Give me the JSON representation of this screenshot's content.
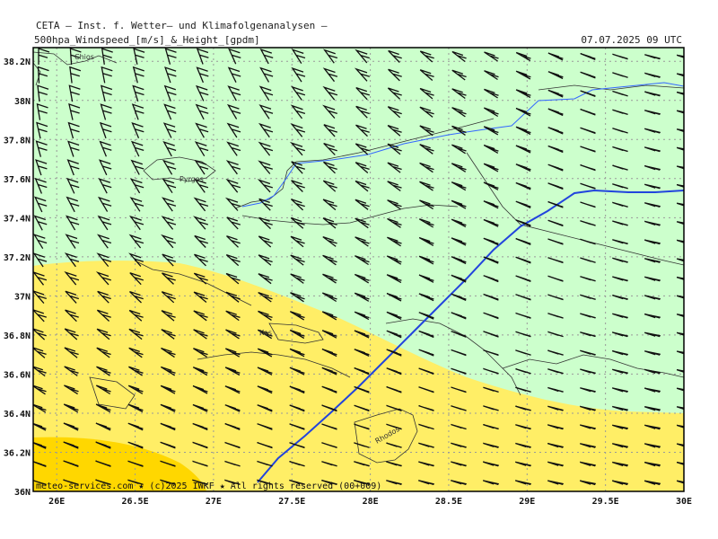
{
  "header": {
    "org": "CETA — Inst. f. Wetter— und Klimafolgenanalysen —",
    "parameter": "500hpa_Windspeed_[m/s]_&_Height_[gpdm]",
    "datetime": "07.07.2025 09 UTC"
  },
  "footer": {
    "credit": "meteo-services.com ★ (c)2025 IWKF ★ All rights reserved (00+009)"
  },
  "axes": {
    "x_labels": [
      "26E",
      "26.5E",
      "27E",
      "27.5E",
      "28E",
      "28.5E",
      "29E",
      "29.5E",
      "30E"
    ],
    "y_labels": [
      "38.2N",
      "38N",
      "37.8N",
      "37.6N",
      "37.4N",
      "37.2N",
      "37N",
      "36.8N",
      "36.6N",
      "36.4N",
      "36.2N",
      "36N"
    ],
    "lon_range": [
      25.85,
      30.0
    ],
    "lat_range": [
      36.0,
      38.27
    ]
  },
  "places": [
    "Chios",
    "Pyrgos",
    "Kos",
    "Rhodos"
  ],
  "wind": {
    "direction": "northerly / north-westerly",
    "shading_colors": {
      "light_green": "#ccffcc",
      "light_yellow": "#ffee66",
      "gold": "#ffd700"
    }
  },
  "contours": {
    "height_line_color": "#2244dd",
    "river_color": "#3366ff",
    "coast_color": "#333333"
  }
}
